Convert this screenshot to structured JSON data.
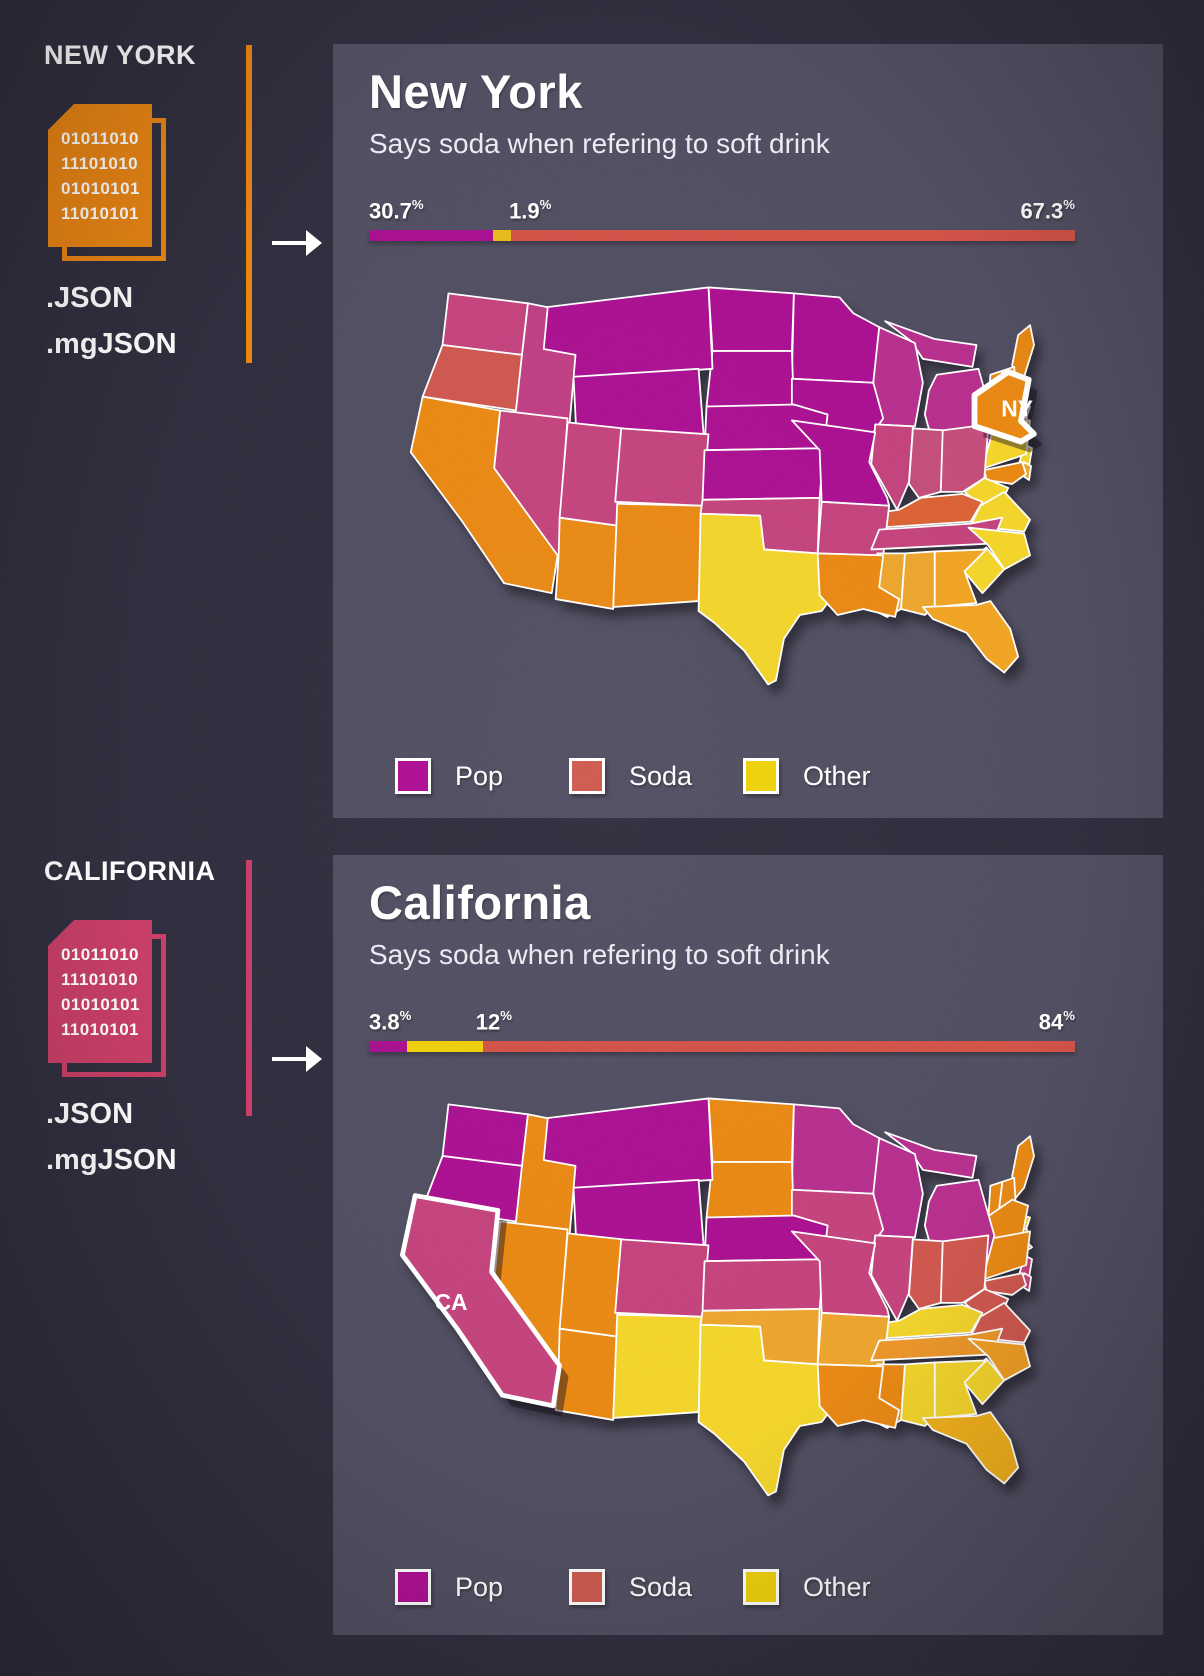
{
  "page": {
    "background": "#2c2a3a",
    "panel_background": "#4d4b5e",
    "text_color": "#ffffff"
  },
  "sources": [
    {
      "title": "NEW YORK",
      "accent": "#e8820f",
      "binary_lines": [
        "01011010",
        "11101010",
        "01010101",
        "11010101"
      ],
      "formats": [
        ".JSON",
        ".mgJSON"
      ]
    },
    {
      "title": "CALIFORNIA",
      "accent": "#c73a64",
      "binary_lines": [
        "01011010",
        "11101010",
        "01010101",
        "11010101"
      ],
      "formats": [
        ".JSON",
        ".mgJSON"
      ]
    }
  ],
  "panels": [
    {
      "title": "New York",
      "subtitle": "Says soda when refering to soft drink",
      "bar": {
        "unit": "%",
        "segments": [
          {
            "name": "Pop",
            "label": "30.7",
            "color": "#a60b8d",
            "width_pct": 17.5
          },
          {
            "name": "Other",
            "label": "1.9",
            "color": "#e3ba17",
            "width_pct": 2.6
          },
          {
            "name": "Soda",
            "label": "67.3",
            "color": "#d14f44",
            "width_pct": 79.9
          }
        ]
      },
      "legend": [
        {
          "label": "Pop",
          "color": "#ad0a92"
        },
        {
          "label": "Soda",
          "color": "#cd574c"
        },
        {
          "label": "Other",
          "color": "#eed008"
        }
      ],
      "map": {
        "highlight": "NY",
        "highlight_label": "NY",
        "state_colors": {
          "WA": "#c23f7a",
          "OR": "#cd544b",
          "CA": "#e8860f",
          "NV": "#c23f7a",
          "ID": "#bd3a80",
          "MT": "#a80b8e",
          "WY": "#a80b8e",
          "UT": "#c23f7a",
          "CO": "#c23f7a",
          "AZ": "#e8860f",
          "NM": "#e8860f",
          "ND": "#a80b8e",
          "SD": "#a80b8e",
          "NE": "#a80b8e",
          "KS": "#a80b8e",
          "OK": "#c23f7a",
          "TX": "#f2d327",
          "MN": "#a80b8e",
          "IA": "#a80b8e",
          "MO": "#a80b8e",
          "AR": "#c23f7a",
          "LA": "#e8860f",
          "WI": "#b52b8b",
          "IL": "#c23f7a",
          "MI": "#b52b8b",
          "IN": "#c24a78",
          "OH": "#c24a78",
          "KY": "#d95f31",
          "TN": "#c23f7a",
          "MS": "#eba32a",
          "AL": "#eba32a",
          "GA": "#efa21f",
          "FL": "#efa21f",
          "SC": "#f2d327",
          "NC": "#f2d327",
          "VA": "#f2d327",
          "WV": "#f2d327",
          "MD": "#e8860f",
          "DE": "#eba32a",
          "PA": "#f2d327",
          "NY": "#e8860f",
          "NJ": "#f2d327",
          "CT": "#de6c33",
          "RI": "#de6c33",
          "MA": "#de6c33",
          "VT": "#e8860f",
          "NH": "#e8860f",
          "ME": "#e8860f"
        }
      }
    },
    {
      "title": "California",
      "subtitle": "Says soda when refering to soft drink",
      "bar": {
        "unit": "%",
        "segments": [
          {
            "name": "Pop",
            "label": "3.8",
            "color": "#a60b8d",
            "width_pct": 5.4
          },
          {
            "name": "Other",
            "label": "12",
            "color": "#eece08",
            "width_pct": 10.8
          },
          {
            "name": "Soda",
            "label": "84",
            "color": "#d14f44",
            "width_pct": 83.8
          }
        ]
      },
      "legend": [
        {
          "label": "Pop",
          "color": "#ad0a92"
        },
        {
          "label": "Soda",
          "color": "#cd574c"
        },
        {
          "label": "Other",
          "color": "#eed008"
        }
      ],
      "map": {
        "highlight": "CA",
        "highlight_label": "CA",
        "state_colors": {
          "WA": "#a80b8e",
          "OR": "#a80b8e",
          "CA": "#c23f7a",
          "NV": "#e8860f",
          "ID": "#e8860f",
          "MT": "#a80b8e",
          "WY": "#a80b8e",
          "UT": "#e8860f",
          "CO": "#c23f7a",
          "AZ": "#e8860f",
          "NM": "#f2d327",
          "ND": "#e8860f",
          "SD": "#e8860f",
          "NE": "#a80b8e",
          "KS": "#c23f7a",
          "OK": "#eba32a",
          "TX": "#f2d327",
          "MN": "#b52b8b",
          "IA": "#c23f7a",
          "MO": "#c23f7a",
          "AR": "#eba32a",
          "LA": "#e8860f",
          "WI": "#b52b8b",
          "IL": "#c23f7a",
          "MI": "#b52b8b",
          "IN": "#cd544b",
          "OH": "#cd544b",
          "KY": "#f2d327",
          "TN": "#eb9426",
          "MS": "#e8860f",
          "AL": "#f2d327",
          "GA": "#f2d327",
          "FL": "#f0ad17",
          "SC": "#f2d327",
          "NC": "#ef9b1f",
          "VA": "#cd544b",
          "WV": "#cd544b",
          "MD": "#cd544b",
          "DE": "#c23f7a",
          "PA": "#e8860f",
          "NY": "#e8860f",
          "NJ": "#c23f7a",
          "CT": "#eba32a",
          "RI": "#e8860f",
          "MA": "#f2d327",
          "VT": "#e8860f",
          "NH": "#e8860f",
          "ME": "#e8860f"
        }
      }
    }
  ],
  "chart_data": [
    {
      "type": "bar",
      "title": "New York",
      "subtitle": "Says soda when refering to soft drink",
      "categories": [
        "Pop",
        "Other",
        "Soda"
      ],
      "values": [
        30.7,
        1.9,
        67.3
      ],
      "unit": "%",
      "colors": [
        "#a60b8d",
        "#e3ba17",
        "#d14f44"
      ],
      "legend_position": "bottom",
      "note": "stacked horizontal percent bar plus US choropleth; New York state highlighted"
    },
    {
      "type": "bar",
      "title": "California",
      "subtitle": "Says soda when refering to soft drink",
      "categories": [
        "Pop",
        "Other",
        "Soda"
      ],
      "values": [
        3.8,
        12,
        84
      ],
      "unit": "%",
      "colors": [
        "#a60b8d",
        "#eece08",
        "#d14f44"
      ],
      "legend_position": "bottom",
      "note": "stacked horizontal percent bar plus US choropleth; California state highlighted"
    }
  ]
}
